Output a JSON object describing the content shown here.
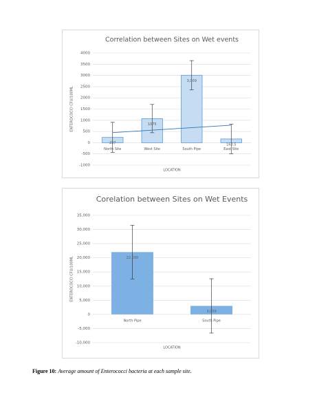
{
  "chart_data": [
    {
      "type": "bar",
      "title": "Correlation between Sites on Wet events",
      "x_label": "LOCATION",
      "y_label": "ENTEROCOCCI CFU/100ML",
      "categories": [
        "North Site",
        "West Site",
        "South Pipe",
        "East Site"
      ],
      "values": [
        237,
        1075,
        3009,
        168.5
      ],
      "value_labels": [
        "237",
        "1075",
        "3,009",
        "168.5"
      ],
      "errors": [
        670,
        630,
        650,
        660
      ],
      "color": "#c5dcf2",
      "edge_color": "#5b9bd5",
      "trendline": {
        "color": "#2e75b6",
        "values": [
          450,
          780
        ]
      },
      "ylim": [
        -1000,
        4000
      ],
      "yticks": [
        -1000,
        -500,
        0,
        500,
        1000,
        1500,
        2000,
        2500,
        3000,
        3500,
        4000
      ],
      "grid": true
    },
    {
      "type": "bar",
      "title": "Corelation between Sites on Wet Events",
      "x_label": "LOCATION",
      "y_label": "ENTEROCOCCI CFU/100ML",
      "categories": [
        "North Pipe",
        "South Pipe"
      ],
      "values": [
        22030,
        3009
      ],
      "value_labels": [
        "22,030",
        "3,009"
      ],
      "errors": [
        9500,
        9600
      ],
      "color": "#7eb1e3",
      "ylim": [
        -10000,
        35000
      ],
      "yticks": [
        {
          "value": -10000,
          "label": "-10,000"
        },
        {
          "value": -5000,
          "label": "-5,000"
        },
        0,
        {
          "value": 5000,
          "label": "5,000"
        },
        {
          "value": 10000,
          "label": "10,000"
        },
        {
          "value": 15000,
          "label": "15,000"
        },
        {
          "value": 20000,
          "label": "20,000"
        },
        {
          "value": 25000,
          "label": "25,000"
        },
        {
          "value": 30000,
          "label": "30,000"
        },
        {
          "value": 35000,
          "label": "35,000"
        }
      ],
      "grid": true
    }
  ],
  "caption": {
    "label": "Figure 10:",
    "text": "Average amount of Enterococci bacteria at each sample site."
  }
}
